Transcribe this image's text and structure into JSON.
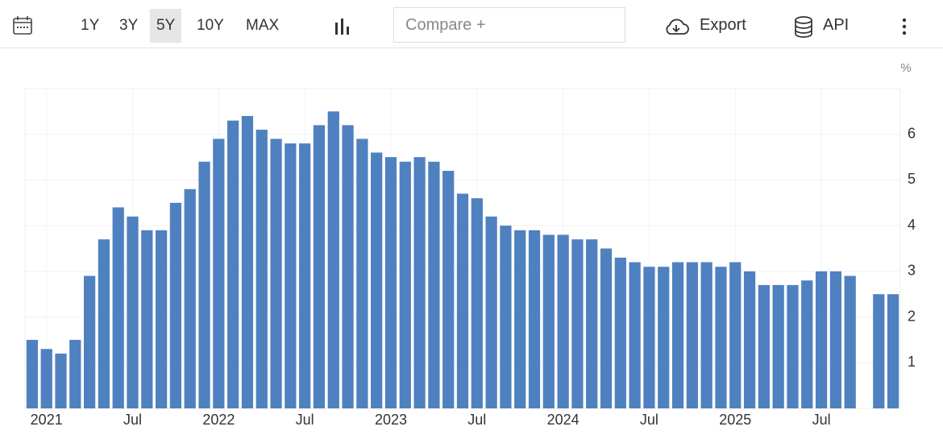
{
  "toolbar": {
    "ranges": [
      "1Y",
      "3Y",
      "5Y",
      "10Y",
      "MAX"
    ],
    "selected_range": "5Y",
    "compare": "Compare +",
    "export": "Export",
    "api": "API"
  },
  "chart_data": {
    "type": "bar",
    "unit": "%",
    "color": "#4f81c0",
    "categories": [
      null,
      "2021",
      null,
      null,
      null,
      null,
      null,
      "Jul",
      null,
      null,
      null,
      null,
      null,
      "2022",
      null,
      null,
      null,
      null,
      null,
      "Jul",
      null,
      null,
      null,
      null,
      null,
      "2023",
      null,
      null,
      null,
      null,
      null,
      "Jul",
      null,
      null,
      null,
      null,
      null,
      "2024",
      null,
      null,
      null,
      null,
      null,
      "Jul",
      null,
      null,
      null,
      null,
      null,
      "2025",
      null,
      null,
      null,
      null,
      null,
      "Jul",
      null,
      null,
      null,
      null,
      null
    ],
    "values": [
      1.5,
      1.3,
      1.2,
      1.5,
      2.9,
      3.7,
      4.4,
      4.2,
      3.9,
      3.9,
      4.5,
      4.8,
      5.4,
      5.9,
      6.3,
      6.4,
      6.1,
      5.9,
      5.8,
      5.8,
      6.2,
      6.5,
      6.2,
      5.9,
      5.6,
      5.5,
      5.4,
      5.5,
      5.4,
      5.2,
      4.7,
      4.6,
      4.2,
      4.0,
      3.9,
      3.9,
      3.8,
      3.8,
      3.7,
      3.7,
      3.5,
      3.3,
      3.2,
      3.1,
      3.1,
      3.2,
      3.2,
      3.2,
      3.1,
      3.2,
      3.0,
      2.7,
      2.7,
      2.7,
      2.8,
      3.0,
      3.0,
      2.9,
      null,
      2.5,
      2.5
    ],
    "ylim": [
      0,
      7
    ],
    "yticks": [
      1,
      2,
      3,
      4,
      5,
      6
    ],
    "grid": true
  }
}
